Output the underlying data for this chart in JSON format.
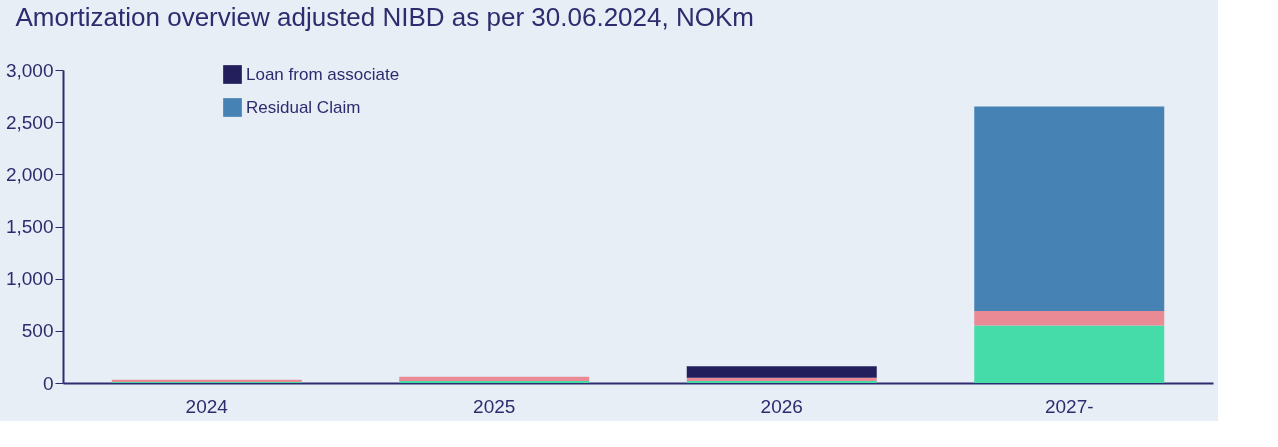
{
  "chart_data": {
    "type": "bar",
    "title": "Amortization overview adjusted NIBD as per 30.06.2024, NOKm",
    "categories": [
      "2024",
      "2025",
      "2026",
      "2027-"
    ],
    "series": [
      {
        "color": "#46dca9",
        "values": [
          10,
          20,
          20,
          550
        ]
      },
      {
        "color": "#ea8a94",
        "values": [
          20,
          40,
          30,
          140
        ]
      },
      {
        "name": "Loan from associate",
        "color": "#231f5c",
        "values": [
          0,
          0,
          110,
          0
        ]
      },
      {
        "name": "Residual Claim",
        "color": "#4682b4",
        "values": [
          0,
          0,
          0,
          1960
        ]
      }
    ],
    "stacked": true,
    "ylim": [
      0,
      3000
    ],
    "yticks": [
      0,
      500,
      {
        "value": 1000,
        "label": "1,000"
      },
      {
        "value": 1500,
        "label": "1,500"
      },
      {
        "value": 2000,
        "label": "2,000"
      },
      {
        "value": 2500,
        "label": "2,500"
      },
      {
        "value": 3000,
        "label": "3,000"
      }
    ],
    "grid": false,
    "legend": "top left"
  }
}
